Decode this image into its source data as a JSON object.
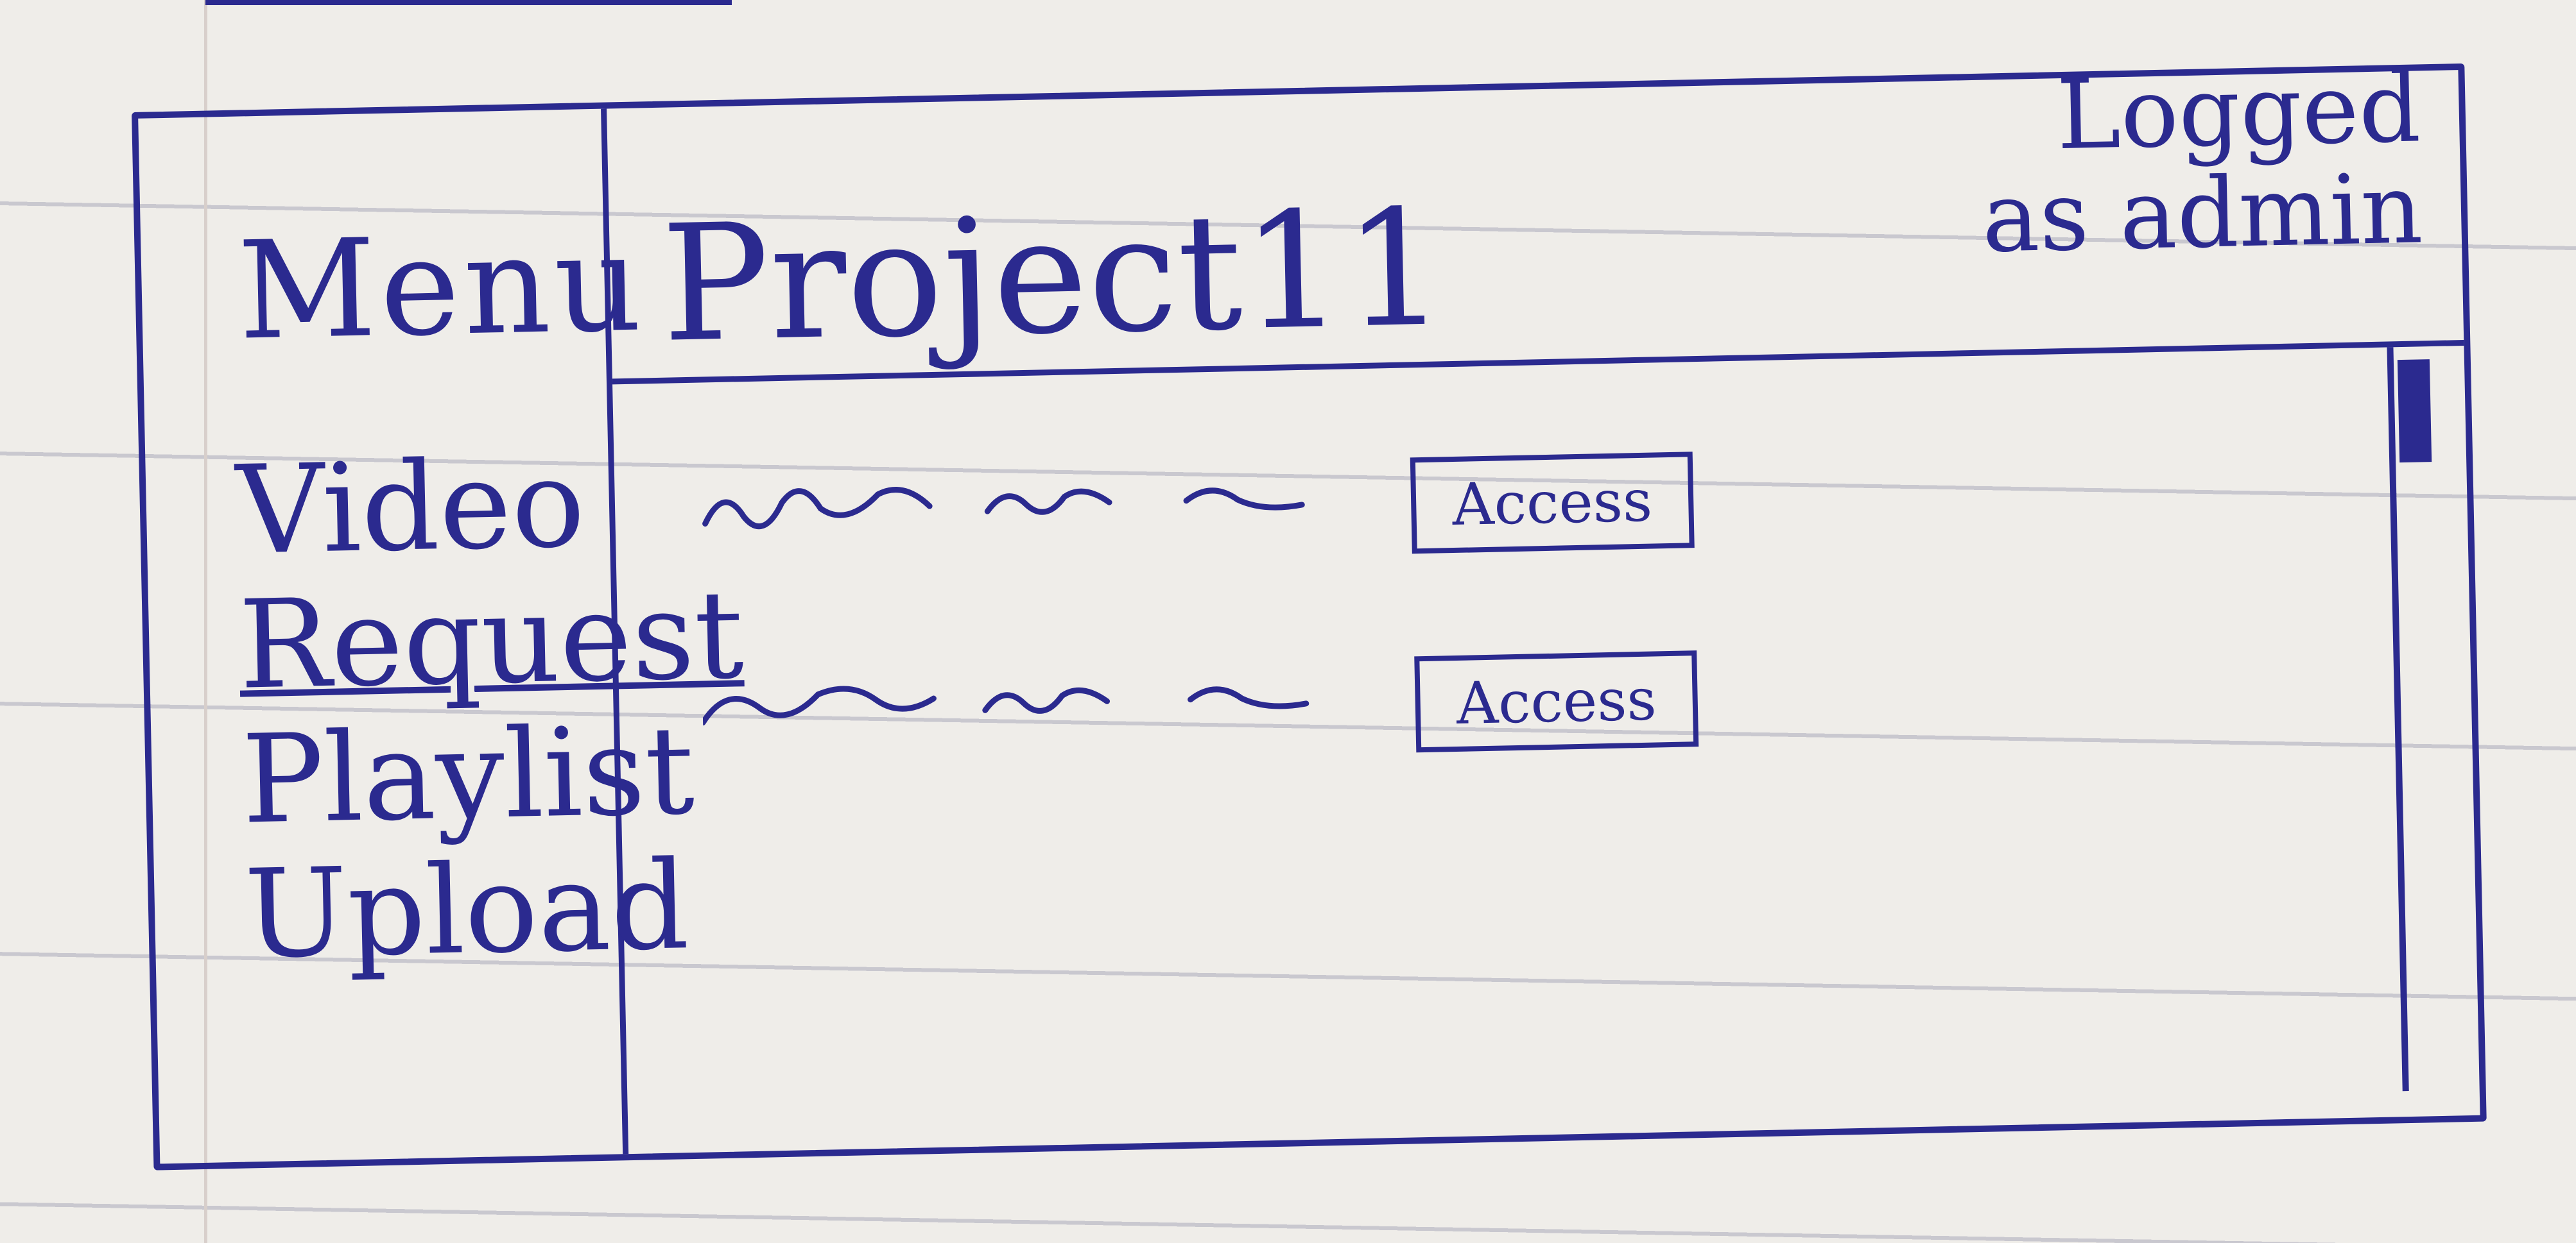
{
  "sidebar": {
    "title": "Menu",
    "items": [
      {
        "label": "Video",
        "active": false
      },
      {
        "label": "Request",
        "active": true
      },
      {
        "label": "Playlist",
        "active": false
      },
      {
        "label": "Upload",
        "active": false
      }
    ]
  },
  "header": {
    "title": "Project11",
    "login_status": "Logged as admin"
  },
  "requests": [
    {
      "action_label": "Access"
    },
    {
      "action_label": "Access"
    }
  ],
  "colors": {
    "ink": "#2b2a8f",
    "paper": "#efede9"
  }
}
